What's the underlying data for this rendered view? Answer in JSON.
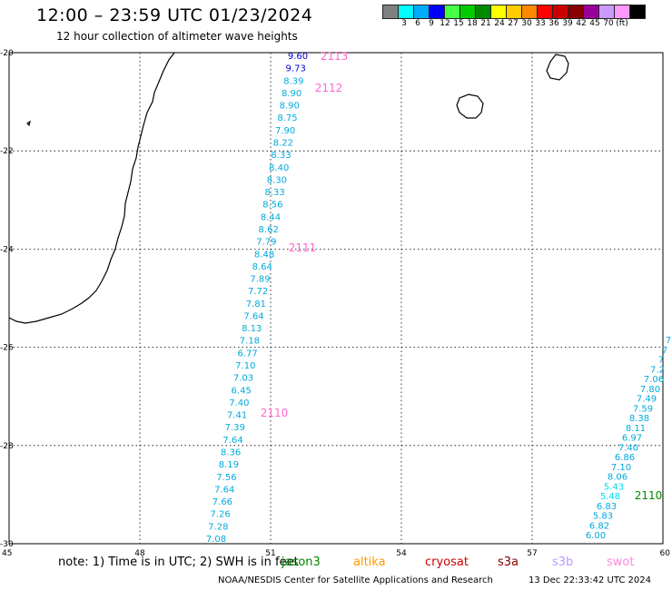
{
  "title": "12:00 – 23:59 UTC 01/23/2024",
  "subtitle": "12 hour collection of altimeter wave heights",
  "color_scale": {
    "labels": [
      "3",
      "6",
      "9",
      "12",
      "15",
      "18",
      "21",
      "24",
      "27",
      "30",
      "33",
      "36",
      "39",
      "42",
      "45",
      "70",
      "(ft)"
    ],
    "colors": [
      "#808080",
      "#00ffff",
      "#00aaff",
      "#0000ff",
      "#44ff44",
      "#00cc00",
      "#008800",
      "#ffff00",
      "#ffcc00",
      "#ff8800",
      "#ff0000",
      "#cc0000",
      "#880000",
      "#990099",
      "#cc99ff",
      "#ff99ff",
      "#000000"
    ]
  },
  "axes": {
    "lon_labels": [
      "45",
      "48",
      "51",
      "54",
      "57",
      "60"
    ],
    "lat_labels": [
      "-20",
      "-22",
      "-24",
      "-26",
      "-28",
      "-30"
    ]
  },
  "tracks": [
    {
      "id": "west-track",
      "values": [
        "9.60",
        "9.73",
        "8.39",
        "8.90",
        "8.90",
        "8.75",
        "7.90",
        "8.22",
        "8.33",
        "8.40",
        "8.30",
        "8.33",
        "8.56",
        "8.44",
        "8.62",
        "7.79",
        "8.48",
        "8.64",
        "7.89",
        "7.72",
        "7.81",
        "7.64",
        "8.13",
        "7.18",
        "6.77",
        "7.10",
        "7.03",
        "6.45",
        "7.40",
        "7.41",
        "7.39",
        "7.64",
        "8.36",
        "8.19",
        "7.56",
        "7.64",
        "7.66",
        "7.26",
        "7.28",
        "7.08"
      ],
      "value_colors": [
        "#0000cc",
        "#0000cc",
        "#00aadd",
        "#00aadd",
        "#00aadd",
        "#00aadd",
        "#00aadd",
        "#00aadd",
        "#00aadd",
        "#00aadd",
        "#00aadd",
        "#00aadd",
        "#00aadd",
        "#00aadd",
        "#00aadd",
        "#00aadd",
        "#00aadd",
        "#00aadd",
        "#00aadd",
        "#00aadd",
        "#00aadd",
        "#00aadd",
        "#00aadd",
        "#00aadd",
        "#00aadd",
        "#00aadd",
        "#00aadd",
        "#00aadd",
        "#00aadd",
        "#00aadd",
        "#00aadd",
        "#00aadd",
        "#00aadd",
        "#00aadd",
        "#00aadd",
        "#00aadd",
        "#00aadd",
        "#00aadd",
        "#00aadd",
        "#00aadd"
      ],
      "time_marks": [
        {
          "label": "2113",
          "color": "#ff66cc"
        },
        {
          "label": "2112",
          "color": "#ff66cc"
        },
        {
          "label": "2111",
          "color": "#ff66cc"
        },
        {
          "label": "2110",
          "color": "#ff66cc"
        }
      ]
    },
    {
      "id": "east-track",
      "values": [
        "7",
        "7",
        "7",
        "7.2",
        "7.06",
        "7.80",
        "7.49",
        "7.59",
        "8.38",
        "8.11",
        "6.97",
        "7.40",
        "6.86",
        "7.10",
        "8.06",
        "5.43",
        "5.48",
        "6.83",
        "5.83",
        "6.82",
        "6.00"
      ],
      "value_colors": [
        "#00aadd",
        "#00aadd",
        "#00aadd",
        "#00aadd",
        "#00aadd",
        "#00aadd",
        "#00aadd",
        "#00aadd",
        "#00aadd",
        "#00aadd",
        "#00aadd",
        "#00aadd",
        "#00aadd",
        "#00aadd",
        "#00aadd",
        "#00ddee",
        "#00ddee",
        "#00aadd",
        "#00aadd",
        "#00aadd",
        "#00aadd"
      ],
      "time_marks": [
        {
          "label": "2110",
          "color": "#008800"
        }
      ]
    }
  ],
  "footer": {
    "note": "note: 1) Time is in UTC; 2) SWH is in feet",
    "legend": [
      {
        "label": "jason3",
        "color": "#008800"
      },
      {
        "label": "altika",
        "color": "#ff9900"
      },
      {
        "label": "cryosat",
        "color": "#cc0000"
      },
      {
        "label": "s3a",
        "color": "#880000"
      },
      {
        "label": "s3b",
        "color": "#bb99ff"
      },
      {
        "label": "swot",
        "color": "#ff88dd"
      }
    ],
    "credit": "NOAA/NESDIS Center for Satellite Applications and Research",
    "timestamp": "13 Dec 22:33:42 UTC 2024"
  }
}
